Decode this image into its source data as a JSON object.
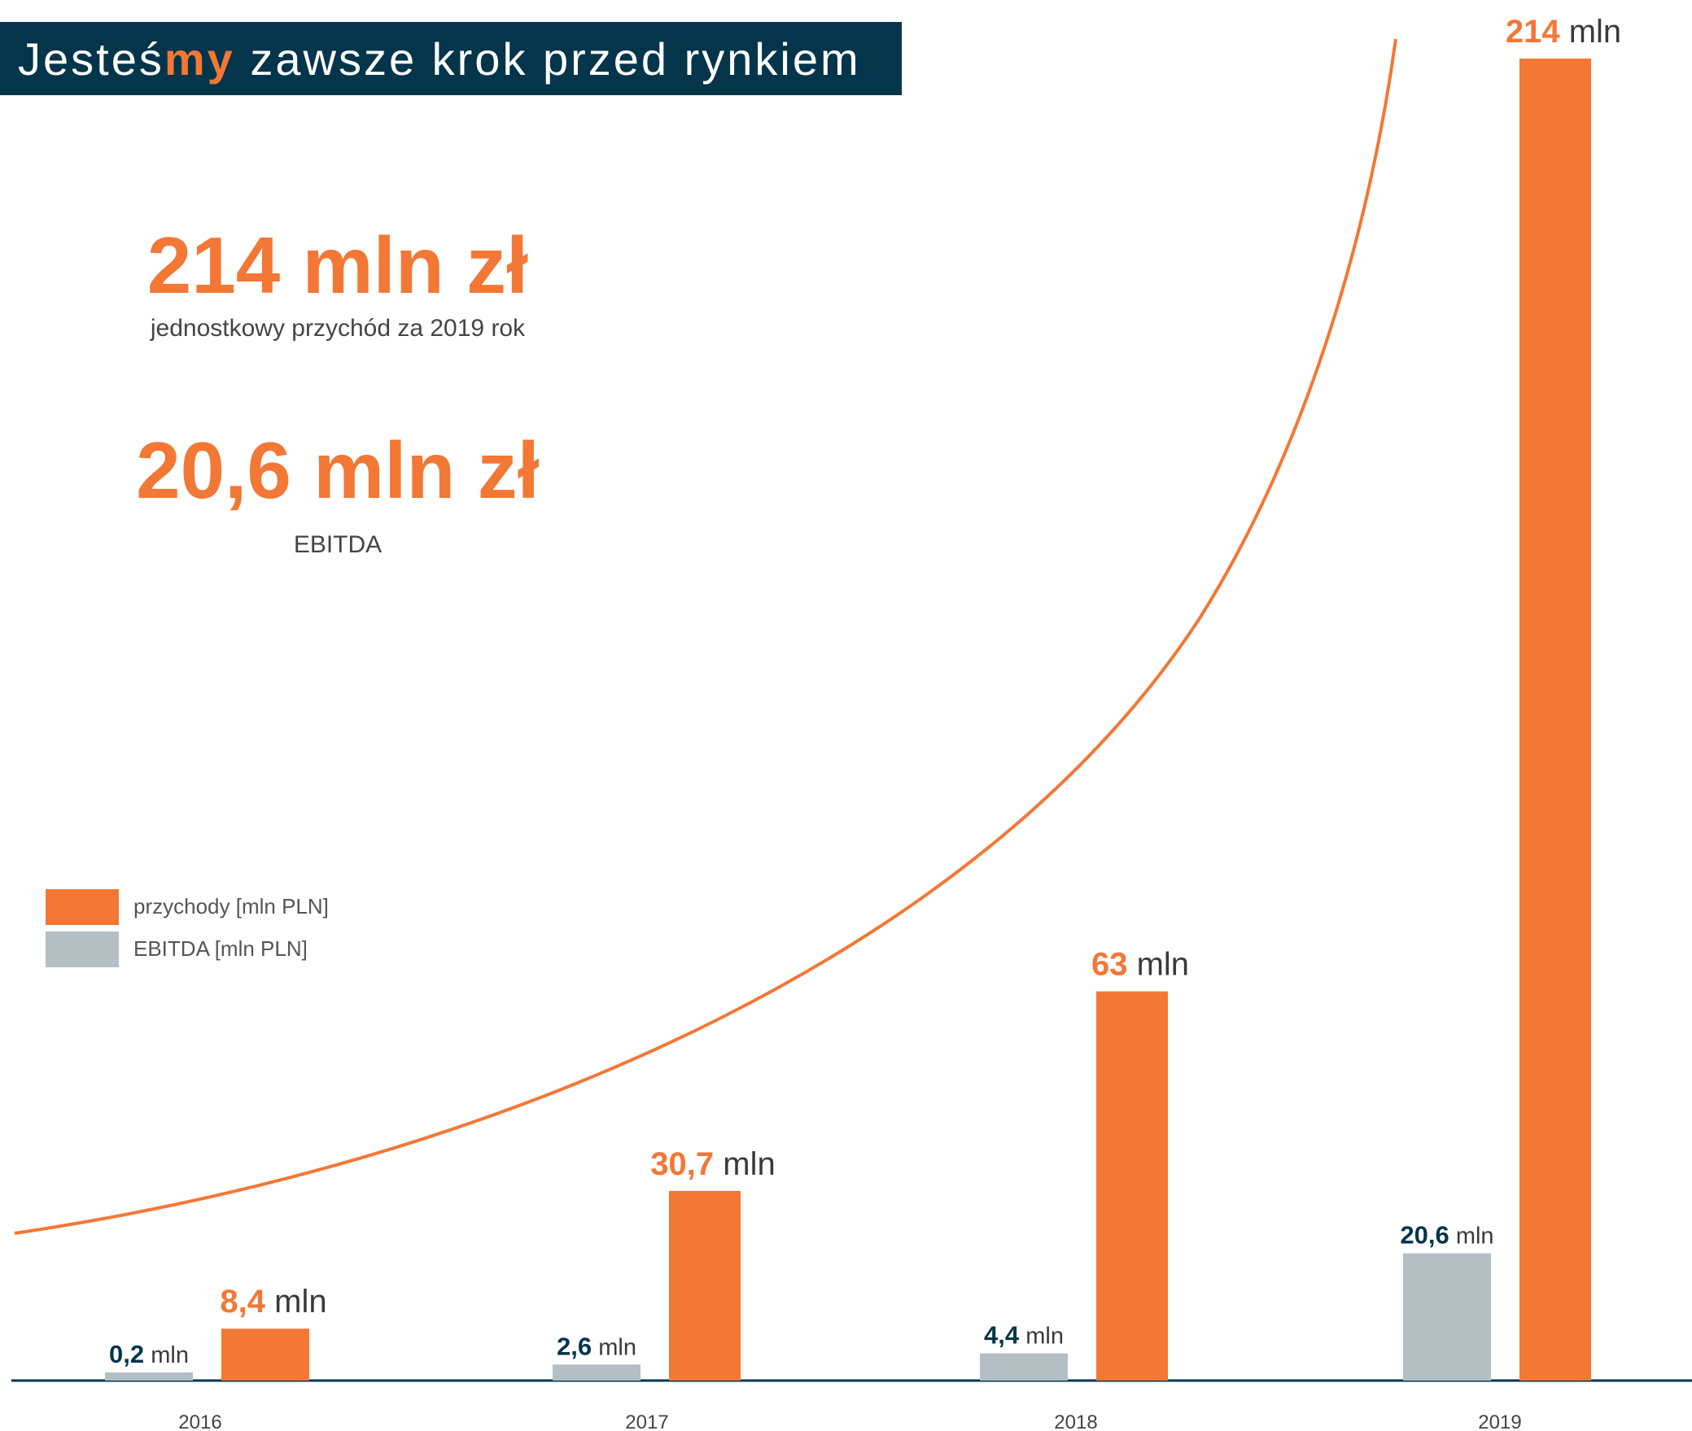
{
  "header": {
    "title_before": "Jesteś",
    "title_highlight": "my",
    "title_after": " zawsze krok przed rynkiem"
  },
  "kpis": [
    {
      "value": "214 mln zł",
      "label": "jednostkowy przychód za 2019 rok"
    },
    {
      "value": "20,6 mln zł",
      "label": "EBITDA"
    }
  ],
  "colors": {
    "accent": "#f37735",
    "ebitda": "#b4bfc4",
    "dark": "#05354b"
  },
  "chart_data": {
    "type": "bar",
    "categories": [
      "2016",
      "2017",
      "2018",
      "2019"
    ],
    "unit_label": "mln",
    "series": [
      {
        "name": "EBITDA [mln PLN]",
        "values": [
          0.2,
          2.6,
          4.4,
          20.6
        ],
        "labels": [
          "0,2",
          "2,6",
          "4,4",
          "20,6"
        ],
        "color": "#b4bfc4"
      },
      {
        "name": "przychody [mln PLN]",
        "values": [
          8.4,
          30.7,
          63,
          214
        ],
        "labels": [
          "8,4",
          "30,7",
          "63",
          "214"
        ],
        "color": "#f37735"
      }
    ],
    "ylim": [
      0,
      214
    ],
    "legend": "left",
    "trend_line": "exponential",
    "grid": false
  }
}
